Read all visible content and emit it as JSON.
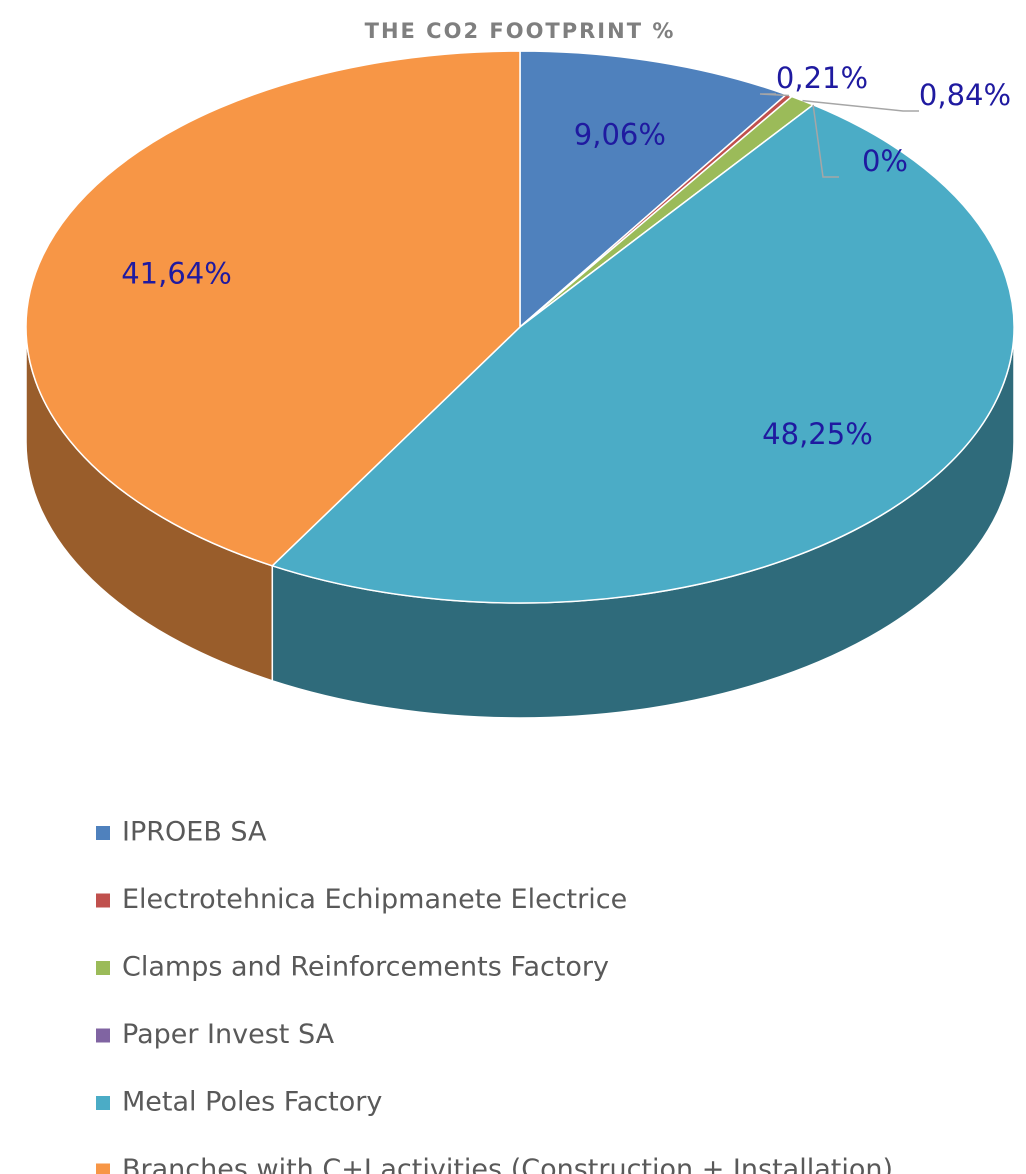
{
  "chart_data": {
    "type": "pie",
    "title": "THE CO2 FOOTPRINT %",
    "categories": [
      "IPROEB SA",
      "Electrotehnica Echipmanete Electrice",
      "Clamps and Reinforcements Factory",
      "Paper Invest SA",
      "Metal Poles Factory",
      "Branches with C+I activities (Construction + Installation)"
    ],
    "values": [
      9.06,
      0.21,
      0.84,
      0,
      48.25,
      41.64
    ],
    "value_labels": [
      "9,06%",
      "0,21%",
      "0,84%",
      "0%",
      "48,25%",
      "41,64%"
    ],
    "colors": [
      "#4f81bd",
      "#c0504d",
      "#9bbb59",
      "#8064a2",
      "#4bacc6",
      "#f79646"
    ],
    "legend": "bottom"
  }
}
